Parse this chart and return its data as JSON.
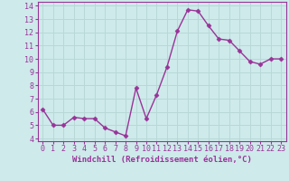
{
  "x": [
    0,
    1,
    2,
    3,
    4,
    5,
    6,
    7,
    8,
    9,
    10,
    11,
    12,
    13,
    14,
    15,
    16,
    17,
    18,
    19,
    20,
    21,
    22,
    23
  ],
  "y": [
    6.2,
    5.0,
    5.0,
    5.6,
    5.5,
    5.5,
    4.8,
    4.5,
    4.2,
    7.8,
    5.5,
    7.3,
    9.4,
    12.1,
    13.7,
    13.6,
    12.5,
    11.5,
    11.4,
    10.6,
    9.8,
    9.6,
    10.0,
    10.0
  ],
  "line_color": "#993399",
  "marker": "D",
  "markersize": 2.5,
  "linewidth": 1.0,
  "xlabel": "Windchill (Refroidissement éolien,°C)",
  "xlabel_fontsize": 6.5,
  "ylabel_ticks": [
    4,
    5,
    6,
    7,
    8,
    9,
    10,
    11,
    12,
    13,
    14
  ],
  "xtick_labels": [
    "0",
    "1",
    "2",
    "3",
    "4",
    "5",
    "6",
    "7",
    "8",
    "9",
    "10",
    "11",
    "12",
    "13",
    "14",
    "15",
    "16",
    "17",
    "18",
    "19",
    "20",
    "21",
    "22",
    "23"
  ],
  "xlim": [
    -0.5,
    23.5
  ],
  "ylim": [
    3.8,
    14.3
  ],
  "bg_color": "#ceeaea",
  "grid_color": "#b8d8d8",
  "tick_color": "#993399",
  "tick_fontsize": 6.0,
  "spine_color": "#993399"
}
